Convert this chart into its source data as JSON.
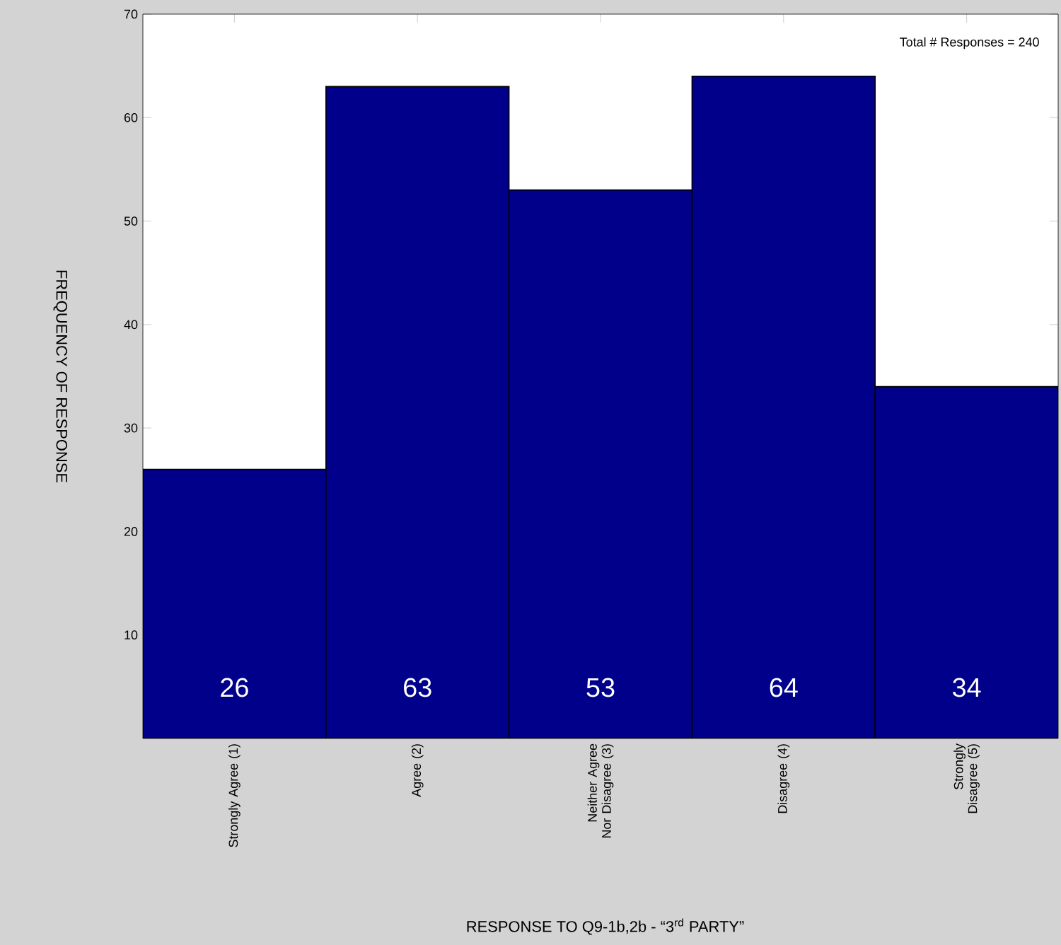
{
  "chart_data": {
    "type": "bar",
    "xlabel": "RESPONSE TO Q9-1b,2b - “3$^{rd}$ PARTY”",
    "ylabel": "FREQUENCY OF RESPONSE",
    "categories": [
      "Strongly Agree (1)",
      "Agree (2)",
      "Neither Agree Nor Disagree (3)",
      "Disagree (4)",
      "Strongly Disagree (5)"
    ],
    "values": [
      26,
      63,
      53,
      64,
      34
    ],
    "color": "#00008b",
    "data_labels": true,
    "ylim": [
      0,
      70
    ],
    "yticks": [
      10,
      20,
      30,
      40,
      50,
      60,
      70
    ],
    "grid": false,
    "annotations": [
      "Total # Responses = 240"
    ]
  }
}
